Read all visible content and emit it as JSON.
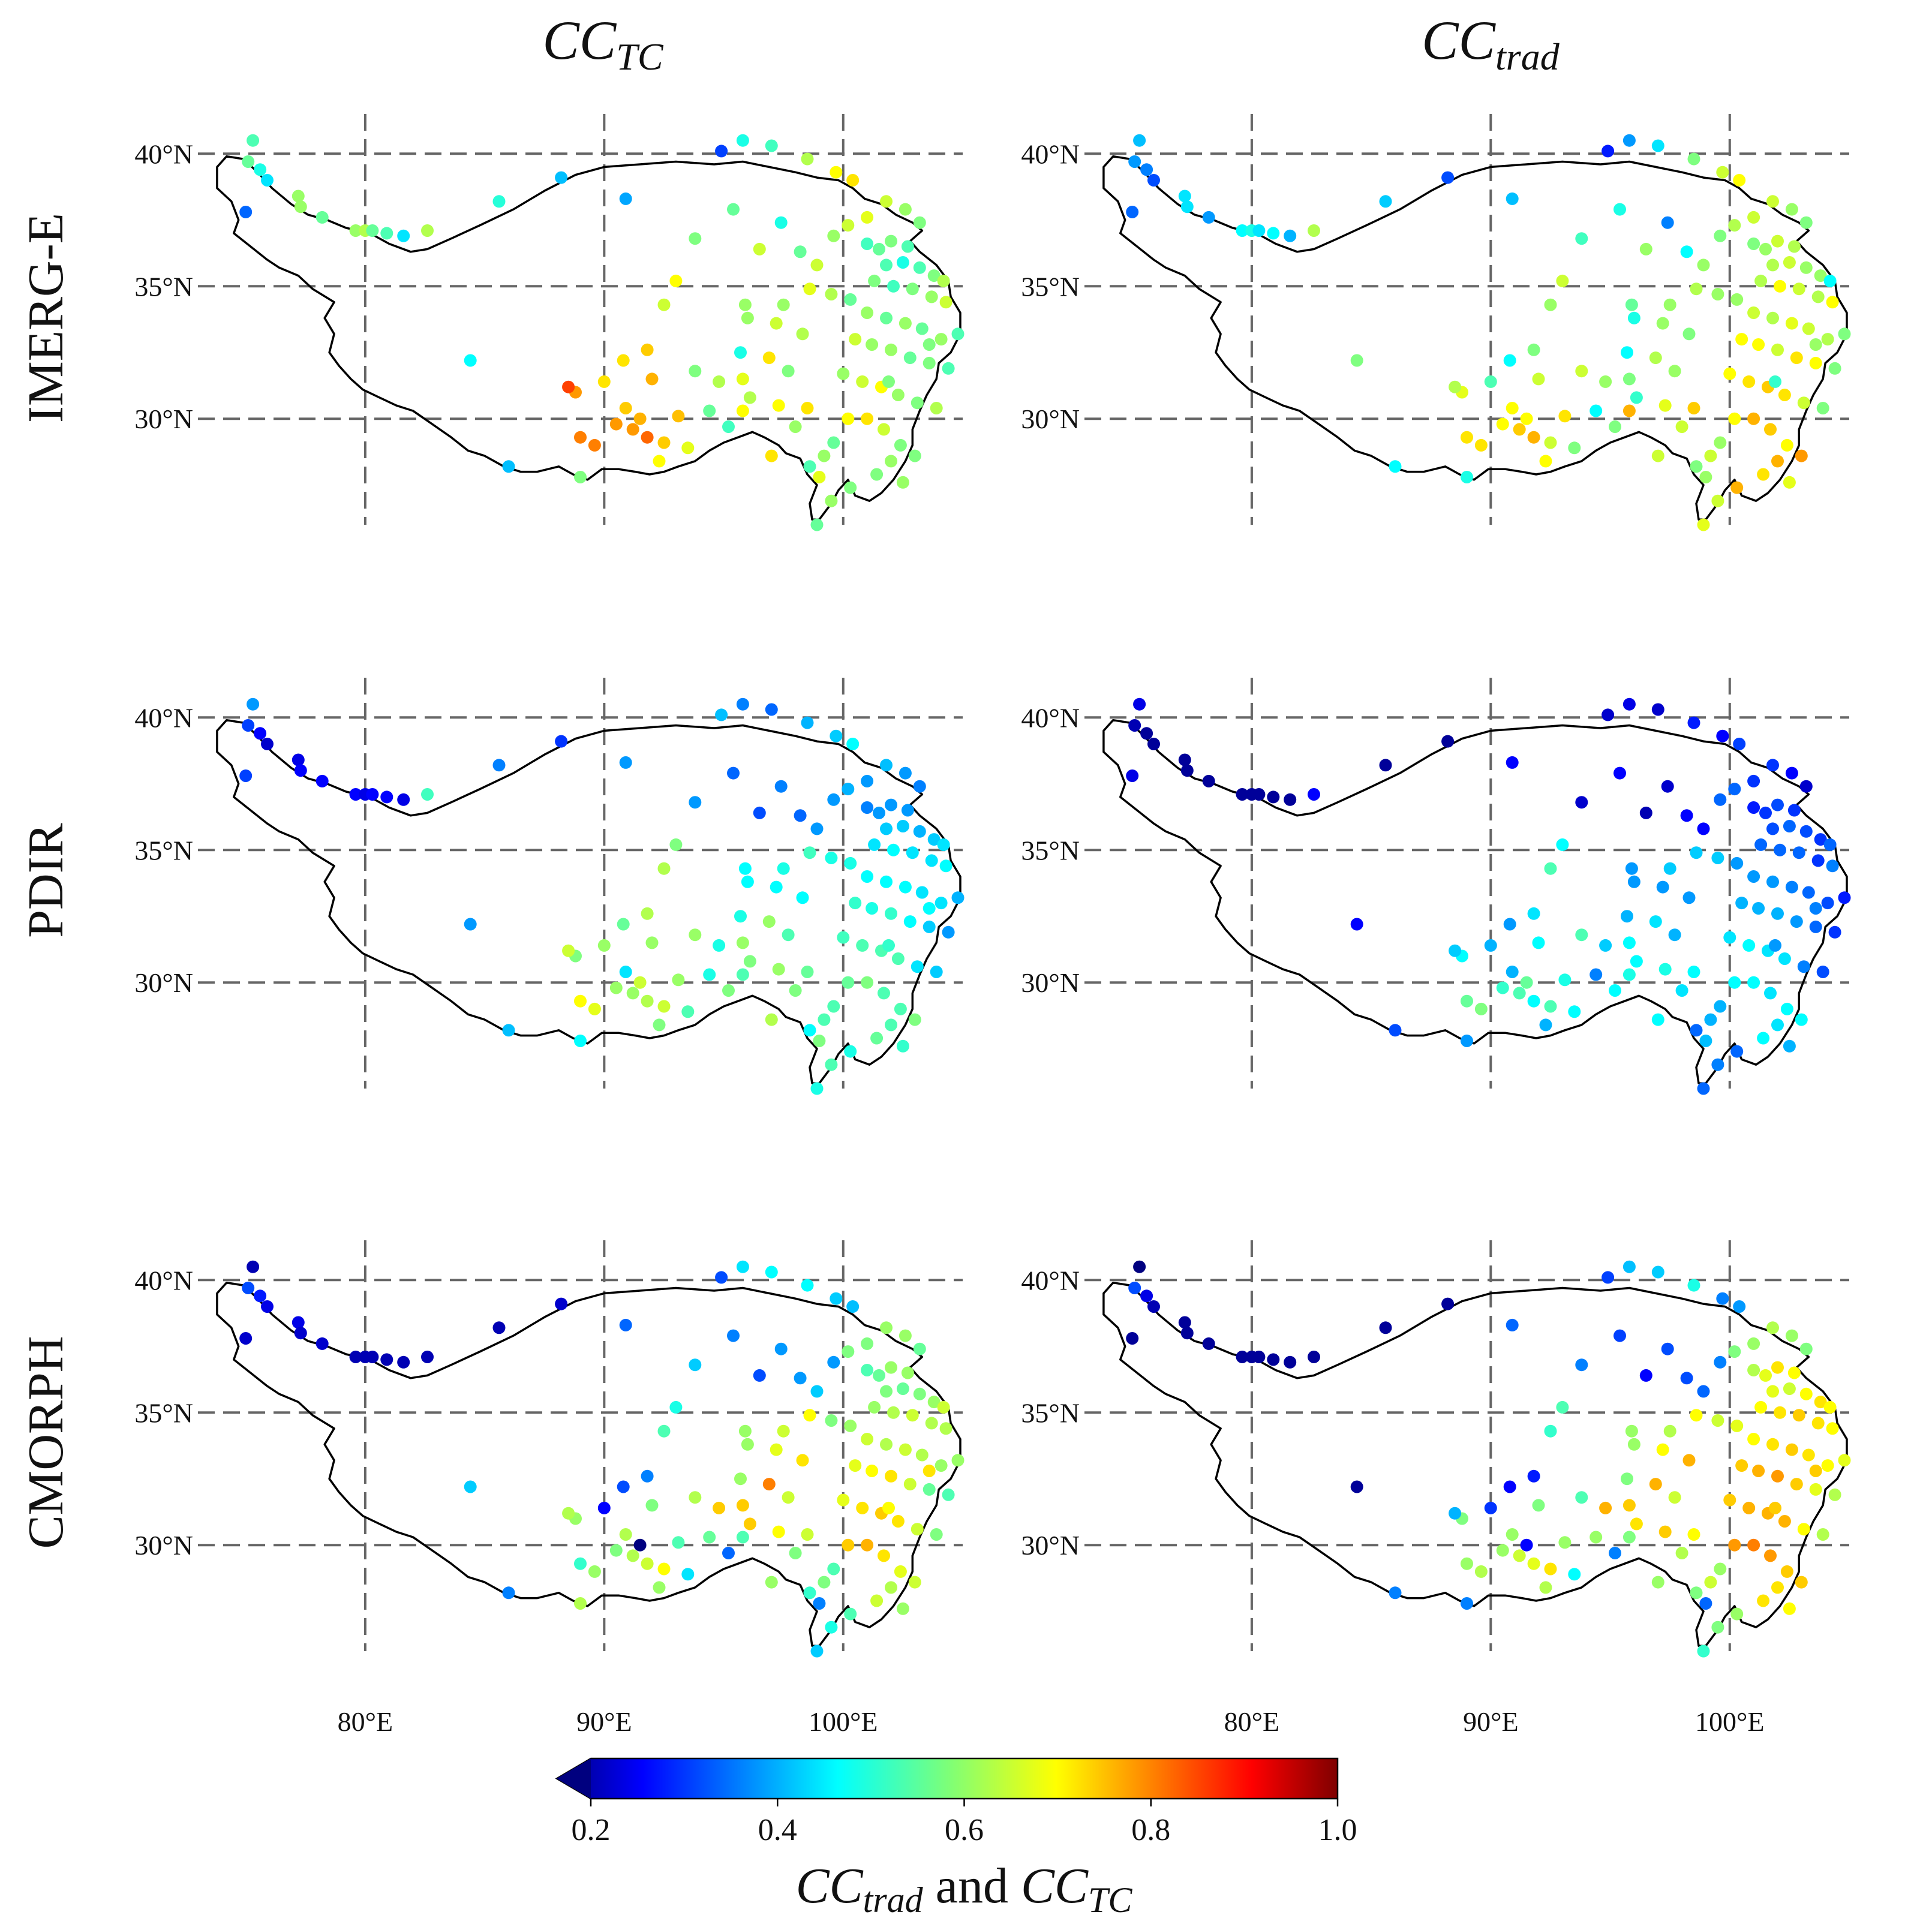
{
  "chart_data": {
    "type": "scatter",
    "title_columns": [
      {
        "symbol": "CC",
        "subscript": "TC"
      },
      {
        "symbol": "CC",
        "subscript": "trad"
      }
    ],
    "row_labels": [
      "IMERG-E",
      "PDIR",
      "CMORPH"
    ],
    "x_axis": {
      "range": [
        73,
        105
      ],
      "ticks": [
        80,
        90,
        100
      ],
      "tick_labels": [
        "80°E",
        "90°E",
        "100°E"
      ]
    },
    "y_axis": {
      "range": [
        26,
        41.5
      ],
      "ticks": [
        30,
        35,
        40
      ],
      "tick_labels": [
        "30°N",
        "35°N",
        "40°N"
      ]
    },
    "colorbar": {
      "cmap": "jet",
      "range": [
        0.2,
        1.0
      ],
      "extend": "min",
      "ticks": [
        0.2,
        0.4,
        0.6,
        0.8,
        1.0
      ],
      "tick_labels": [
        "0.2",
        "0.4",
        "0.6",
        "0.8",
        "1.0"
      ],
      "label": {
        "sym1": "CC",
        "sub1": "trad",
        "word": " and ",
        "sym2": "CC",
        "sub2": "TC"
      }
    },
    "stations": [
      [
        75.3,
        40.5
      ],
      [
        75.1,
        39.7
      ],
      [
        75.6,
        39.4
      ],
      [
        75.9,
        39.0
      ],
      [
        75.0,
        37.8
      ],
      [
        77.2,
        38.4
      ],
      [
        77.3,
        38.0
      ],
      [
        78.2,
        37.6
      ],
      [
        79.6,
        37.1
      ],
      [
        80.0,
        37.1
      ],
      [
        80.3,
        37.1
      ],
      [
        80.9,
        37.0
      ],
      [
        81.6,
        36.9
      ],
      [
        82.6,
        37.1
      ],
      [
        85.6,
        38.2
      ],
      [
        88.2,
        39.1
      ],
      [
        90.9,
        38.3
      ],
      [
        94.9,
        40.1
      ],
      [
        95.8,
        40.5
      ],
      [
        97.0,
        40.3
      ],
      [
        98.5,
        39.8
      ],
      [
        99.7,
        39.3
      ],
      [
        100.4,
        39.0
      ],
      [
        93.8,
        36.8
      ],
      [
        95.4,
        37.9
      ],
      [
        96.5,
        36.4
      ],
      [
        97.4,
        37.4
      ],
      [
        98.2,
        36.3
      ],
      [
        98.9,
        35.8
      ],
      [
        99.6,
        36.9
      ],
      [
        100.2,
        37.3
      ],
      [
        101.0,
        37.6
      ],
      [
        101.8,
        38.2
      ],
      [
        102.6,
        37.9
      ],
      [
        103.2,
        37.4
      ],
      [
        101.0,
        36.6
      ],
      [
        101.5,
        36.4
      ],
      [
        102.0,
        36.7
      ],
      [
        102.7,
        36.5
      ],
      [
        101.8,
        35.8
      ],
      [
        102.5,
        35.9
      ],
      [
        103.2,
        35.7
      ],
      [
        103.8,
        35.4
      ],
      [
        101.3,
        35.2
      ],
      [
        102.1,
        35.0
      ],
      [
        102.9,
        34.9
      ],
      [
        103.7,
        34.6
      ],
      [
        104.3,
        34.4
      ],
      [
        100.3,
        34.5
      ],
      [
        101.0,
        34.0
      ],
      [
        101.8,
        33.8
      ],
      [
        102.6,
        33.6
      ],
      [
        103.3,
        33.4
      ],
      [
        104.1,
        33.0
      ],
      [
        104.8,
        33.2
      ],
      [
        100.5,
        33.0
      ],
      [
        101.2,
        32.8
      ],
      [
        102.0,
        32.6
      ],
      [
        102.8,
        32.3
      ],
      [
        103.6,
        32.1
      ],
      [
        104.4,
        31.9
      ],
      [
        100.0,
        31.7
      ],
      [
        100.8,
        31.4
      ],
      [
        101.6,
        31.2
      ],
      [
        102.3,
        30.9
      ],
      [
        103.1,
        30.6
      ],
      [
        103.9,
        30.4
      ],
      [
        100.2,
        30.0
      ],
      [
        101.0,
        30.0
      ],
      [
        101.7,
        29.6
      ],
      [
        102.4,
        29.0
      ],
      [
        103.0,
        28.6
      ],
      [
        102.0,
        28.4
      ],
      [
        101.4,
        27.9
      ],
      [
        102.5,
        27.6
      ],
      [
        100.3,
        27.4
      ],
      [
        99.5,
        26.9
      ],
      [
        98.9,
        26.0
      ],
      [
        99.2,
        28.6
      ],
      [
        98.6,
        28.2
      ],
      [
        99.6,
        29.1
      ],
      [
        98.0,
        29.7
      ],
      [
        98.5,
        30.4
      ],
      [
        97.3,
        30.5
      ],
      [
        96.1,
        30.8
      ],
      [
        95.8,
        31.5
      ],
      [
        96.9,
        32.3
      ],
      [
        97.7,
        31.8
      ],
      [
        95.7,
        32.5
      ],
      [
        96.0,
        33.8
      ],
      [
        97.2,
        33.6
      ],
      [
        98.3,
        33.2
      ],
      [
        97.5,
        34.3
      ],
      [
        98.6,
        34.9
      ],
      [
        99.5,
        34.7
      ],
      [
        95.9,
        34.3
      ],
      [
        93.0,
        35.2
      ],
      [
        92.5,
        34.3
      ],
      [
        91.8,
        32.6
      ],
      [
        90.8,
        32.2
      ],
      [
        92.0,
        31.5
      ],
      [
        93.8,
        31.8
      ],
      [
        90.0,
        31.4
      ],
      [
        88.8,
        31.0
      ],
      [
        89.0,
        29.3
      ],
      [
        89.6,
        29.0
      ],
      [
        90.5,
        29.8
      ],
      [
        91.2,
        29.6
      ],
      [
        91.8,
        29.3
      ],
      [
        92.5,
        29.1
      ],
      [
        93.1,
        30.1
      ],
      [
        92.3,
        28.4
      ],
      [
        94.4,
        30.3
      ],
      [
        94.8,
        31.4
      ],
      [
        95.8,
        30.3
      ],
      [
        93.5,
        28.9
      ],
      [
        89.0,
        27.8
      ],
      [
        86.0,
        28.2
      ],
      [
        84.4,
        32.2
      ],
      [
        88.5,
        31.2
      ],
      [
        91.5,
        30.0
      ],
      [
        97.0,
        28.6
      ],
      [
        99.0,
        27.8
      ],
      [
        101.9,
        31.4
      ],
      [
        103.6,
        32.8
      ],
      [
        104.2,
        35.2
      ],
      [
        90.9,
        30.4
      ],
      [
        95.2,
        29.7
      ]
    ],
    "panels": [
      {
        "row": "IMERG-E",
        "column": "CC_TC",
        "values": [
          0.56,
          0.58,
          0.52,
          0.48,
          0.38,
          0.62,
          0.62,
          0.58,
          0.62,
          0.64,
          0.58,
          0.56,
          0.48,
          0.64,
          0.53,
          0.45,
          0.43,
          0.35,
          0.52,
          0.55,
          0.64,
          0.7,
          0.72,
          0.6,
          0.58,
          0.66,
          0.52,
          0.58,
          0.66,
          0.62,
          0.66,
          0.68,
          0.66,
          0.62,
          0.6,
          0.55,
          0.58,
          0.6,
          0.56,
          0.56,
          0.52,
          0.56,
          0.6,
          0.6,
          0.55,
          0.6,
          0.62,
          0.66,
          0.58,
          0.62,
          0.58,
          0.62,
          0.58,
          0.62,
          0.56,
          0.66,
          0.62,
          0.62,
          0.58,
          0.6,
          0.56,
          0.62,
          0.66,
          0.7,
          0.62,
          0.6,
          0.64,
          0.7,
          0.72,
          0.66,
          0.6,
          0.6,
          0.62,
          0.6,
          0.62,
          0.6,
          0.62,
          0.58,
          0.62,
          0.56,
          0.58,
          0.62,
          0.72,
          0.7,
          0.64,
          0.68,
          0.72,
          0.6,
          0.52,
          0.62,
          0.66,
          0.64,
          0.62,
          0.68,
          0.64,
          0.62,
          0.7,
          0.66,
          0.74,
          0.72,
          0.76,
          0.6,
          0.72,
          0.78,
          0.8,
          0.8,
          0.78,
          0.78,
          0.82,
          0.74,
          0.75,
          0.7,
          0.58,
          0.64,
          0.7,
          0.68,
          0.6,
          0.45,
          0.5,
          0.85,
          0.76,
          0.72,
          0.68,
          0.6,
          0.6,
          0.64,
          0.74,
          0.55
        ],
        "marks": []
      },
      {
        "row": "IMERG-E",
        "column": "CC_trad",
        "values": [
          0.45,
          0.42,
          0.4,
          0.36,
          0.38,
          0.48,
          0.48,
          0.42,
          0.5,
          0.52,
          0.48,
          0.5,
          0.44,
          0.64,
          0.46,
          0.36,
          0.45,
          0.32,
          0.42,
          0.48,
          0.6,
          0.66,
          0.7,
          0.55,
          0.52,
          0.62,
          0.4,
          0.5,
          0.62,
          0.6,
          0.64,
          0.66,
          0.66,
          0.62,
          0.6,
          0.6,
          0.62,
          0.66,
          0.64,
          0.64,
          0.66,
          0.62,
          0.62,
          0.64,
          0.7,
          0.66,
          0.64,
          0.7,
          0.62,
          0.66,
          0.64,
          0.68,
          0.66,
          0.64,
          0.6,
          0.7,
          0.7,
          0.66,
          0.72,
          0.7,
          0.6,
          0.7,
          0.72,
          0.74,
          0.72,
          0.66,
          0.6,
          0.7,
          0.76,
          0.74,
          0.7,
          0.78,
          0.76,
          0.72,
          0.68,
          0.76,
          0.66,
          0.68,
          0.66,
          0.6,
          0.62,
          0.66,
          0.74,
          0.68,
          0.54,
          0.6,
          0.64,
          0.62,
          0.5,
          0.52,
          0.62,
          0.6,
          0.62,
          0.64,
          0.62,
          0.58,
          0.66,
          0.62,
          0.6,
          0.5,
          0.66,
          0.66,
          0.56,
          0.68,
          0.72,
          0.72,
          0.7,
          0.74,
          0.76,
          0.66,
          0.72,
          0.7,
          0.5,
          0.62,
          0.76,
          0.6,
          0.52,
          0.5,
          0.6,
          0.64,
          0.7,
          0.66,
          0.62,
          0.54,
          0.62,
          0.5,
          0.7,
          0.6
        ],
        "marks": []
      },
      {
        "row": "PDIR",
        "column": "CC_TC",
        "values": [
          0.42,
          0.35,
          0.3,
          0.26,
          0.35,
          0.28,
          0.3,
          0.3,
          0.3,
          0.28,
          0.3,
          0.3,
          0.28,
          0.55,
          0.4,
          0.34,
          0.42,
          0.45,
          0.4,
          0.38,
          0.44,
          0.46,
          0.5,
          0.42,
          0.38,
          0.36,
          0.4,
          0.38,
          0.42,
          0.42,
          0.44,
          0.42,
          0.45,
          0.42,
          0.4,
          0.4,
          0.42,
          0.42,
          0.42,
          0.46,
          0.46,
          0.44,
          0.46,
          0.48,
          0.5,
          0.48,
          0.48,
          0.5,
          0.52,
          0.5,
          0.5,
          0.5,
          0.48,
          0.48,
          0.44,
          0.54,
          0.52,
          0.54,
          0.5,
          0.46,
          0.42,
          0.55,
          0.56,
          0.56,
          0.56,
          0.48,
          0.46,
          0.58,
          0.6,
          0.56,
          0.56,
          0.6,
          0.56,
          0.58,
          0.54,
          0.52,
          0.56,
          0.52,
          0.56,
          0.5,
          0.56,
          0.6,
          0.58,
          0.62,
          0.6,
          0.62,
          0.62,
          0.56,
          0.52,
          0.5,
          0.5,
          0.5,
          0.52,
          0.55,
          0.52,
          0.5,
          0.6,
          0.64,
          0.64,
          0.58,
          0.62,
          0.62,
          0.62,
          0.6,
          0.7,
          0.68,
          0.62,
          0.62,
          0.64,
          0.66,
          0.62,
          0.6,
          0.52,
          0.52,
          0.56,
          0.56,
          0.5,
          0.45,
          0.42,
          0.66,
          0.66,
          0.64,
          0.6,
          0.54,
          0.5,
          0.48,
          0.48,
          0.6
        ],
        "marks": []
      },
      {
        "row": "PDIR",
        "column": "CC_trad",
        "values": [
          0.28,
          0.24,
          0.22,
          0.22,
          0.28,
          0.22,
          0.22,
          0.22,
          0.22,
          0.22,
          0.22,
          0.22,
          0.22,
          0.3,
          0.22,
          0.22,
          0.3,
          0.26,
          0.28,
          0.26,
          0.32,
          0.3,
          0.35,
          0.26,
          0.3,
          0.24,
          0.26,
          0.3,
          0.3,
          0.38,
          0.38,
          0.34,
          0.34,
          0.3,
          0.26,
          0.32,
          0.34,
          0.36,
          0.34,
          0.36,
          0.38,
          0.36,
          0.34,
          0.38,
          0.38,
          0.38,
          0.34,
          0.4,
          0.42,
          0.42,
          0.42,
          0.4,
          0.38,
          0.36,
          0.32,
          0.44,
          0.44,
          0.44,
          0.42,
          0.38,
          0.34,
          0.48,
          0.5,
          0.48,
          0.48,
          0.4,
          0.36,
          0.5,
          0.5,
          0.48,
          0.5,
          0.5,
          0.48,
          0.5,
          0.44,
          0.38,
          0.4,
          0.38,
          0.44,
          0.38,
          0.44,
          0.48,
          0.5,
          0.52,
          0.5,
          0.5,
          0.48,
          0.44,
          0.44,
          0.42,
          0.42,
          0.42,
          0.46,
          0.46,
          0.46,
          0.42,
          0.5,
          0.56,
          0.48,
          0.42,
          0.5,
          0.56,
          0.44,
          0.5,
          0.58,
          0.6,
          0.54,
          0.56,
          0.5,
          0.56,
          0.52,
          0.44,
          0.4,
          0.46,
          0.52,
          0.5,
          0.42,
          0.36,
          0.3,
          0.46,
          0.58,
          0.5,
          0.45,
          0.42,
          0.4,
          0.38,
          0.44,
          0.5
        ],
        "marks": []
      },
      {
        "row": "CMORPH",
        "column": "CC_TC",
        "values": [
          0.24,
          0.36,
          0.32,
          0.28,
          0.26,
          0.28,
          0.26,
          0.26,
          0.24,
          0.24,
          0.24,
          0.24,
          0.24,
          0.24,
          0.24,
          0.26,
          0.38,
          0.36,
          0.48,
          0.5,
          0.5,
          0.46,
          0.45,
          0.46,
          0.4,
          0.36,
          0.42,
          0.42,
          0.46,
          0.42,
          0.6,
          0.6,
          0.62,
          0.62,
          0.58,
          0.56,
          0.58,
          0.62,
          0.62,
          0.6,
          0.58,
          0.6,
          0.62,
          0.62,
          0.64,
          0.66,
          0.64,
          0.64,
          0.62,
          0.66,
          0.64,
          0.66,
          0.64,
          0.62,
          0.62,
          0.68,
          0.7,
          0.72,
          0.66,
          0.58,
          0.56,
          0.68,
          0.72,
          0.74,
          0.72,
          0.66,
          0.6,
          0.74,
          0.76,
          0.72,
          0.68,
          0.66,
          0.64,
          0.66,
          0.62,
          0.56,
          0.52,
          0.46,
          0.6,
          0.54,
          0.56,
          0.6,
          0.66,
          0.7,
          0.74,
          0.74,
          0.8,
          0.66,
          0.62,
          0.62,
          0.68,
          0.72,
          0.66,
          0.7,
          0.6,
          0.62,
          0.52,
          0.56,
          0.4,
          0.36,
          0.6,
          0.64,
          0.3,
          0.62,
          0.54,
          0.62,
          0.6,
          0.64,
          0.66,
          0.7,
          0.56,
          0.62,
          0.58,
          0.74,
          0.56,
          0.48,
          0.64,
          0.4,
          0.46,
          0.64,
          0.2,
          0.62,
          0.4,
          0.7,
          0.72,
          0.66,
          0.64,
          0.38,
          0.6,
          0.6
        ],
        "marks": []
      },
      {
        "row": "CMORPH",
        "column": "CC_trad",
        "values": [
          0.2,
          0.36,
          0.28,
          0.24,
          0.22,
          0.22,
          0.22,
          0.22,
          0.22,
          0.22,
          0.22,
          0.22,
          0.22,
          0.22,
          0.22,
          0.22,
          0.38,
          0.35,
          0.45,
          0.46,
          0.52,
          0.4,
          0.42,
          0.4,
          0.35,
          0.3,
          0.36,
          0.36,
          0.38,
          0.4,
          0.6,
          0.62,
          0.64,
          0.62,
          0.6,
          0.64,
          0.68,
          0.72,
          0.7,
          0.68,
          0.66,
          0.7,
          0.72,
          0.7,
          0.72,
          0.74,
          0.72,
          0.7,
          0.68,
          0.7,
          0.72,
          0.74,
          0.72,
          0.7,
          0.68,
          0.74,
          0.76,
          0.78,
          0.74,
          0.68,
          0.64,
          0.74,
          0.76,
          0.76,
          0.76,
          0.7,
          0.64,
          0.78,
          0.8,
          0.78,
          0.74,
          0.74,
          0.72,
          0.72,
          0.7,
          0.62,
          0.6,
          0.54,
          0.66,
          0.6,
          0.62,
          0.64,
          0.7,
          0.74,
          0.72,
          0.74,
          0.76,
          0.66,
          0.6,
          0.62,
          0.7,
          0.76,
          0.64,
          0.7,
          0.66,
          0.62,
          0.56,
          0.54,
          0.32,
          0.3,
          0.6,
          0.56,
          0.34,
          0.6,
          0.62,
          0.64,
          0.62,
          0.66,
          0.68,
          0.72,
          0.62,
          0.64,
          0.62,
          0.76,
          0.6,
          0.5,
          0.4,
          0.4,
          0.22,
          0.44,
          0.3,
          0.62,
          0.38,
          0.74,
          0.74,
          0.7,
          0.62,
          0.4,
          0.6,
          0.62
        ],
        "marks": []
      }
    ]
  }
}
